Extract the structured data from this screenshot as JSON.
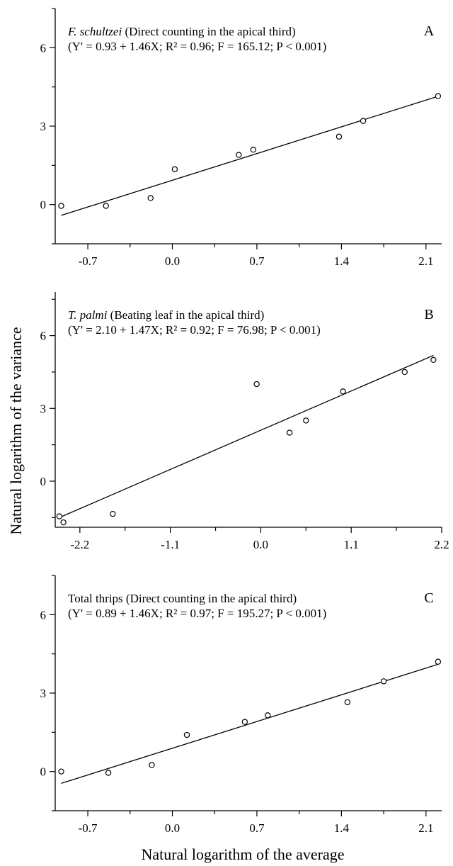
{
  "ylabel": "Natural logarithm of the variance",
  "xlabel": "Natural logarithm of the average",
  "chart_data": [
    {
      "type": "scatter",
      "panel": "A",
      "title_italic": "F. schultzei",
      "title_rest": " (Direct counting in the apical third)",
      "equation": "(Y' = 0.93 + 1.46X; R² = 0.96; F = 165.12; P < 0.001)",
      "xticks": [
        -0.7,
        0.0,
        0.7,
        1.4,
        2.1
      ],
      "xtick_labels": [
        "-0.7",
        "0.0",
        "0.7",
        "1.4",
        "2.1"
      ],
      "yticks": [
        0,
        3,
        6
      ],
      "ytick_labels": [
        "0",
        "3",
        "6"
      ],
      "xlim": [
        -0.97,
        2.23
      ],
      "ylim": [
        -1.5,
        7.5
      ],
      "points": [
        [
          -0.92,
          -0.05
        ],
        [
          -0.55,
          -0.05
        ],
        [
          -0.18,
          0.25
        ],
        [
          0.02,
          1.35
        ],
        [
          0.55,
          1.9
        ],
        [
          0.67,
          2.1
        ],
        [
          1.38,
          2.6
        ],
        [
          1.58,
          3.2
        ],
        [
          2.2,
          4.15
        ]
      ],
      "fit": {
        "intercept": 0.93,
        "slope": 1.46,
        "x_range": [
          -0.92,
          2.2
        ]
      }
    },
    {
      "type": "scatter",
      "panel": "B",
      "title_italic": "T. palmi",
      "title_rest": " (Beating leaf in the apical third)",
      "equation": "(Y' = 2.10 + 1.47X; R² = 0.92; F = 76.98; P < 0.001)",
      "xticks": [
        -2.2,
        -1.1,
        0.0,
        1.1,
        2.2
      ],
      "xtick_labels": [
        "-2.2",
        "-1.1",
        "0.0",
        "1.1",
        "2.2"
      ],
      "yticks": [
        0,
        3,
        6
      ],
      "ytick_labels": [
        "0",
        "3",
        "6"
      ],
      "xlim": [
        -2.5,
        2.2
      ],
      "ylim": [
        -1.9,
        7.8
      ],
      "points": [
        [
          -2.45,
          -1.45
        ],
        [
          -2.4,
          -1.7
        ],
        [
          -1.8,
          -1.35
        ],
        [
          -0.05,
          4.0
        ],
        [
          0.35,
          2.0
        ],
        [
          0.55,
          2.5
        ],
        [
          1.0,
          3.7
        ],
        [
          1.75,
          4.5
        ],
        [
          2.1,
          5.0
        ]
      ],
      "fit": {
        "intercept": 2.1,
        "slope": 1.47,
        "x_range": [
          -2.45,
          2.1
        ]
      }
    },
    {
      "type": "scatter",
      "panel": "C",
      "title_italic": "",
      "title_rest": "Total thrips (Direct counting in the apical third)",
      "equation": "(Y' = 0.89 + 1.46X; R² = 0.97; F = 195.27; P < 0.001)",
      "xticks": [
        -0.7,
        0.0,
        0.7,
        1.4,
        2.1
      ],
      "xtick_labels": [
        "-0.7",
        "0.0",
        "0.7",
        "1.4",
        "2.1"
      ],
      "yticks": [
        0,
        3,
        6
      ],
      "ytick_labels": [
        "0",
        "3",
        "6"
      ],
      "xlim": [
        -0.97,
        2.23
      ],
      "ylim": [
        -1.5,
        7.5
      ],
      "points": [
        [
          -0.92,
          0.0
        ],
        [
          -0.53,
          -0.05
        ],
        [
          -0.17,
          0.25
        ],
        [
          0.12,
          1.4
        ],
        [
          0.6,
          1.9
        ],
        [
          0.79,
          2.15
        ],
        [
          1.45,
          2.65
        ],
        [
          1.75,
          3.45
        ],
        [
          2.2,
          4.2
        ]
      ],
      "fit": {
        "intercept": 0.89,
        "slope": 1.46,
        "x_range": [
          -0.92,
          2.2
        ]
      }
    }
  ]
}
